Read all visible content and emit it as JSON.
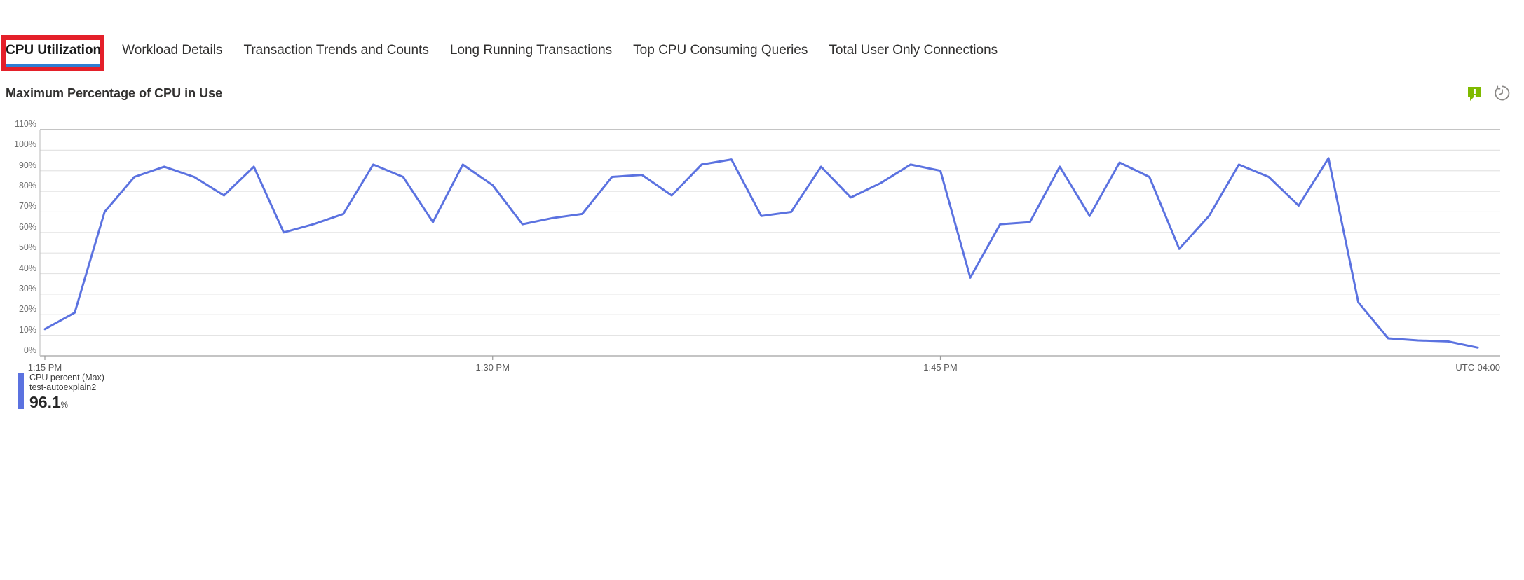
{
  "tabs": {
    "items": [
      {
        "label": "CPU Utilization",
        "selected": true
      },
      {
        "label": "Workload Details",
        "selected": false
      },
      {
        "label": "Transaction Trends and Counts",
        "selected": false
      },
      {
        "label": "Long Running Transactions",
        "selected": false
      },
      {
        "label": "Top CPU Consuming Queries",
        "selected": false
      },
      {
        "label": "Total User Only Connections",
        "selected": false
      }
    ]
  },
  "chart": {
    "title": "Maximum Percentage of CPU in Use"
  },
  "legend": {
    "series_label": "CPU percent (Max)",
    "resource_name": "test-autoexplain2",
    "value": "96.1",
    "unit": "%"
  },
  "chart_data": {
    "type": "line",
    "title": "Maximum Percentage of CPU in Use",
    "series": [
      {
        "name": "CPU percent (Max)",
        "resource": "test-autoexplain2",
        "values": [
          13,
          21,
          70,
          87,
          92,
          87,
          78,
          92,
          60,
          64,
          69,
          93,
          87,
          65,
          93,
          83,
          64,
          67,
          69,
          87,
          88,
          78,
          93,
          95.5,
          68,
          70,
          92,
          77,
          84,
          93,
          90,
          38,
          64,
          65,
          92,
          68,
          94,
          87,
          52,
          68,
          93,
          87,
          73,
          96.1,
          26,
          8.5,
          7.5,
          7,
          4
        ]
      }
    ],
    "x_start_label": "1:15 PM",
    "x_interval_minutes": 1,
    "x_ticks": [
      {
        "label": "1:15 PM",
        "minute": 0
      },
      {
        "label": "1:30 PM",
        "minute": 15
      },
      {
        "label": "1:45 PM",
        "minute": 30
      }
    ],
    "x_axis_right_label": "UTC-04:00",
    "ylim": [
      0,
      110
    ],
    "y_tick_step": 10,
    "y_unit": "%",
    "grid": true,
    "legend_position": "bottom-left",
    "max_value": 96.1
  },
  "colors": {
    "line_blue": "#5b72e0",
    "tab_underline_blue": "#2f7ed3",
    "annotation_red": "#e4202a",
    "feedback_green": "#7fba00",
    "grid_light": "#e4e4e4",
    "grid_dark": "#c4c4c4"
  }
}
